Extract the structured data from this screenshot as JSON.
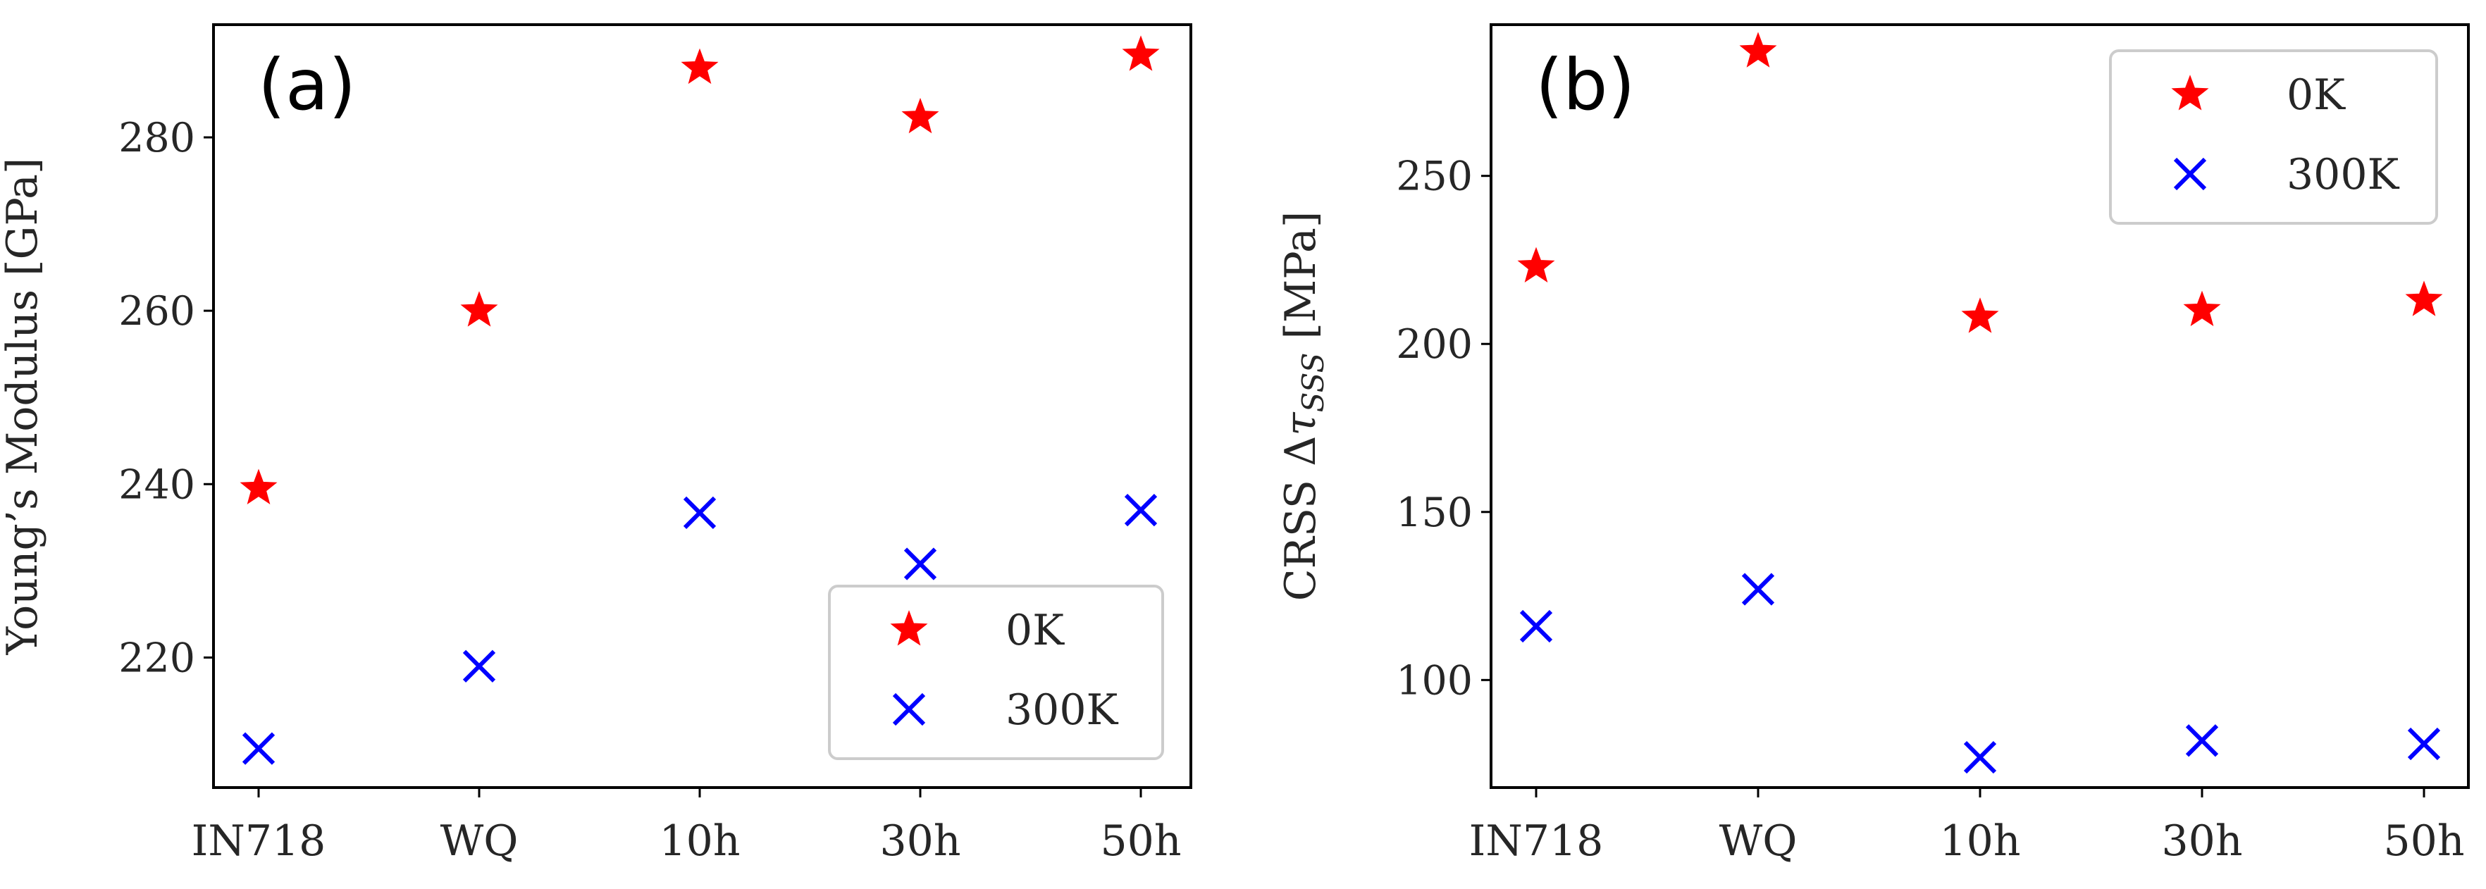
{
  "chart_data": [
    {
      "type": "scatter",
      "panel_label": "(a)",
      "ylabel": "Young’s Modulus [GPa]",
      "categories": [
        "IN718",
        "WQ",
        "10h",
        "30h",
        "50h"
      ],
      "yticks": [
        220,
        240,
        260,
        280
      ],
      "ylim": [
        205,
        293
      ],
      "grid": false,
      "legend_position": "lower right",
      "series": [
        {
          "name": "0K",
          "marker": "star",
          "color": "#ff0000",
          "values": [
            239.5,
            260,
            288,
            282.3,
            289.5
          ]
        },
        {
          "name": "300K",
          "marker": "x",
          "color": "#0000ff",
          "values": [
            209.5,
            219,
            236.7,
            230.8,
            237
          ]
        }
      ]
    },
    {
      "type": "scatter",
      "panel_label": "(b)",
      "ylabel": "CRSS Δτ_SSS [MPa]",
      "ylabel_parts": {
        "prefix": "CRSS Δ",
        "tau": "τ",
        "subscript": "SSS",
        "suffix": " [MPa]"
      },
      "categories": [
        "IN718",
        "WQ",
        "10h",
        "30h",
        "50h"
      ],
      "yticks": [
        100,
        150,
        200,
        250
      ],
      "ylim": [
        68,
        295
      ],
      "grid": false,
      "legend_position": "upper right",
      "series": [
        {
          "name": "0K",
          "marker": "star",
          "color": "#ff0000",
          "values": [
            223,
            287,
            208,
            210,
            213
          ]
        },
        {
          "name": "300K",
          "marker": "x",
          "color": "#0000ff",
          "values": [
            116,
            127,
            77,
            82,
            81
          ]
        }
      ]
    }
  ]
}
